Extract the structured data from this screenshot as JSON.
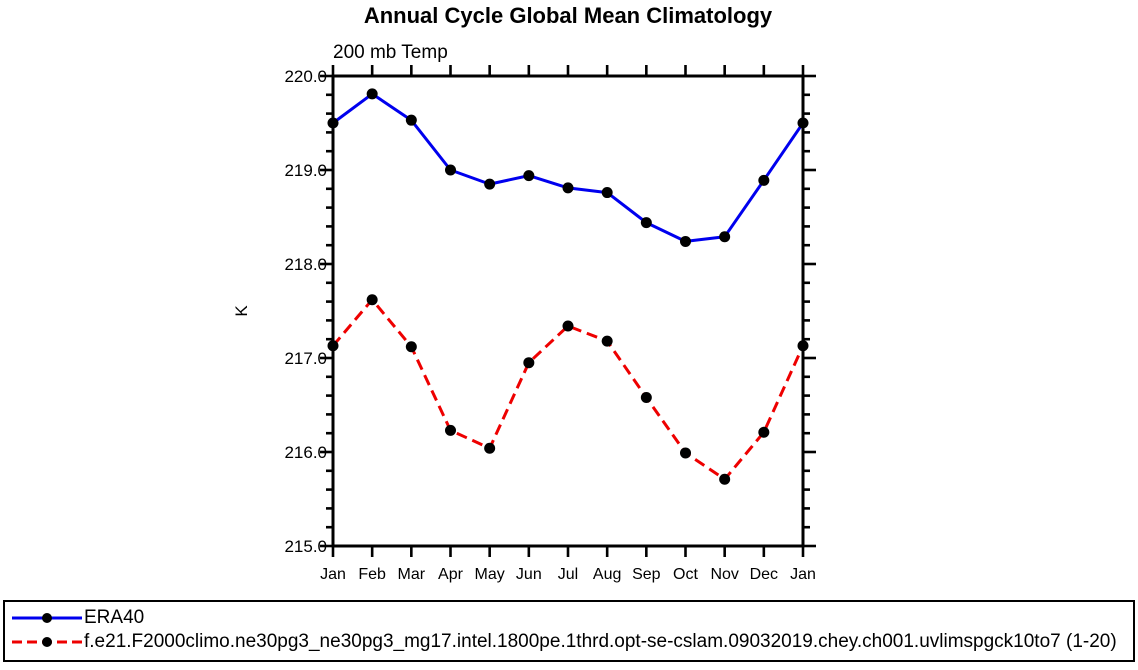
{
  "chart_data": {
    "type": "line",
    "title": "Annual Cycle Global Mean Climatology",
    "subtitle": "200 mb Temp",
    "ylabel": "K",
    "xlabel": "",
    "categories": [
      "Jan",
      "Feb",
      "Mar",
      "Apr",
      "May",
      "Jun",
      "Jul",
      "Aug",
      "Sep",
      "Oct",
      "Nov",
      "Dec",
      "Jan"
    ],
    "ylim": [
      215.0,
      220.0
    ],
    "y_major_step": 1.0,
    "y_minor_step": 0.2,
    "y_tick_labels": [
      "220.0",
      "219.0",
      "218.0",
      "217.0",
      "216.0",
      "215.0"
    ],
    "grid": false,
    "axis_color": "#000000",
    "marker_color": "#000000",
    "legend_position": "bottom-left-box",
    "series": [
      {
        "name": "ERA40",
        "color": "#0000EE",
        "line_style": "solid",
        "marker": "filled-circle",
        "values": [
          219.5,
          219.81,
          219.53,
          219.0,
          218.85,
          218.94,
          218.81,
          218.76,
          218.44,
          218.24,
          218.29,
          218.89,
          219.5
        ]
      },
      {
        "name": "f.e21.F2000climo.ne30pg3_ne30pg3_mg17.intel.1800pe.1thrd.opt-se-cslam.09032019.chey.ch001.uvlimspgck10to7 (1-20)",
        "color": "#EE0000",
        "line_style": "dashed",
        "marker": "filled-circle",
        "values": [
          217.13,
          217.62,
          217.12,
          216.23,
          216.04,
          216.95,
          217.34,
          217.18,
          216.58,
          215.99,
          215.71,
          216.21,
          217.13
        ]
      }
    ]
  }
}
